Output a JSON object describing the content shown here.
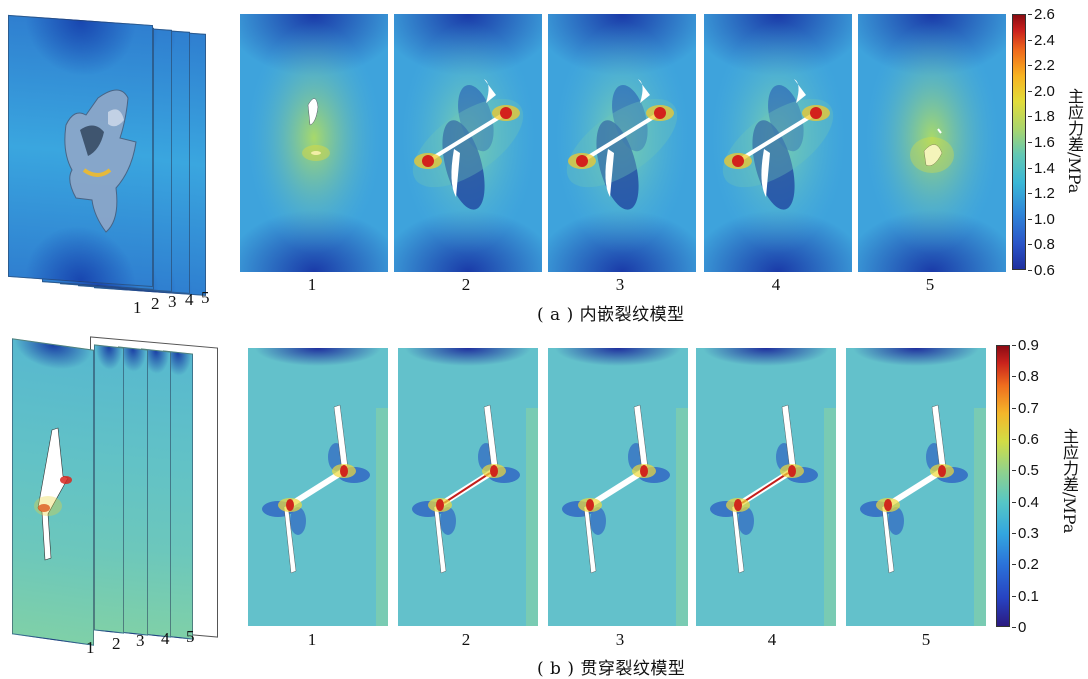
{
  "row_a": {
    "caption": "( a ) 内嵌裂纹模型",
    "panel_labels": [
      "1",
      "2",
      "3",
      "4",
      "5"
    ],
    "stack_labels": [
      "1",
      "2",
      "3",
      "4",
      "5"
    ],
    "colorbar": {
      "label": "主应力差/MPa",
      "ticks": [
        "2.6",
        "2.4",
        "2.2",
        "2.0",
        "1.8",
        "1.6",
        "1.4",
        "1.2",
        "1.0",
        "0.8",
        "0.6"
      ],
      "min": 0.6,
      "max": 2.6
    }
  },
  "row_b": {
    "caption": "( b ) 贯穿裂纹模型",
    "panel_labels": [
      "1",
      "2",
      "3",
      "4",
      "5"
    ],
    "stack_labels": [
      "1",
      "2",
      "3",
      "4",
      "5"
    ],
    "colorbar": {
      "label": "主应力差/MPa",
      "ticks": [
        "0.9",
        "0.8",
        "0.7",
        "0.6",
        "0.5",
        "0.4",
        "0.3",
        "0.2",
        "0.1",
        "0"
      ],
      "min": 0,
      "max": 0.9
    }
  }
}
